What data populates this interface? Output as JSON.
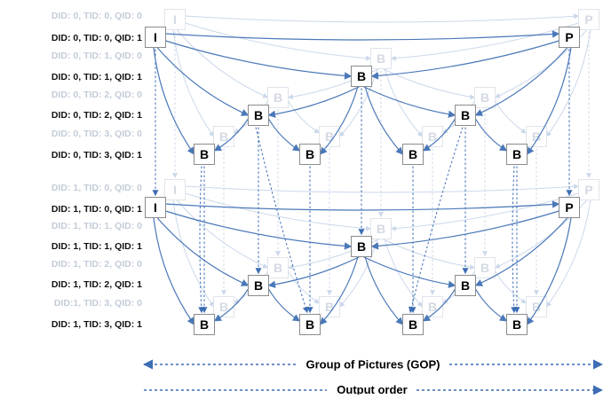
{
  "layers": [
    {
      "label": "DID: 0, TID: 0, QID: 0",
      "faint": true
    },
    {
      "label": "DID: 0, TID: 0, QID: 1",
      "faint": false
    },
    {
      "label": "DID: 0, TID: 1, QID: 0",
      "faint": true
    },
    {
      "label": "DID: 0, TID: 1, QID: 1",
      "faint": false
    },
    {
      "label": "DID: 0, TID: 2, QID: 0",
      "faint": true
    },
    {
      "label": "DID: 0, TID: 2, QID: 1",
      "faint": false
    },
    {
      "label": "DID: 0, TID: 3, QID: 0",
      "faint": true
    },
    {
      "label": "DID: 0, TID: 3, QID: 1",
      "faint": false
    },
    {
      "label": "DID: 1, TID: 0, QID: 0",
      "faint": true
    },
    {
      "label": "DID: 1, TID: 0, QID: 1",
      "faint": false
    },
    {
      "label": "DID: 1, TID: 1, QID: 0",
      "faint": true
    },
    {
      "label": "DID: 1, TID: 1, QID: 1",
      "faint": false
    },
    {
      "label": "DID: 1, TID: 2, QID: 0",
      "faint": true
    },
    {
      "label": "DID: 1, TID: 2, QID: 1",
      "faint": false
    },
    {
      "label": "DID:1, TID: 3, QID: 0",
      "faint": true
    },
    {
      "label": "DID: 1, TID: 3, QID: 1",
      "faint": false
    }
  ],
  "frame_types": {
    "i": "I",
    "p": "P",
    "b": "B"
  },
  "gop_label": "Group of Pictures (GOP)",
  "output_order_label": "Output order",
  "colors": {
    "arrow": "#4a78b8",
    "faint_arrow": "#cbd8ea",
    "faint_text": "#c3ccd8"
  }
}
